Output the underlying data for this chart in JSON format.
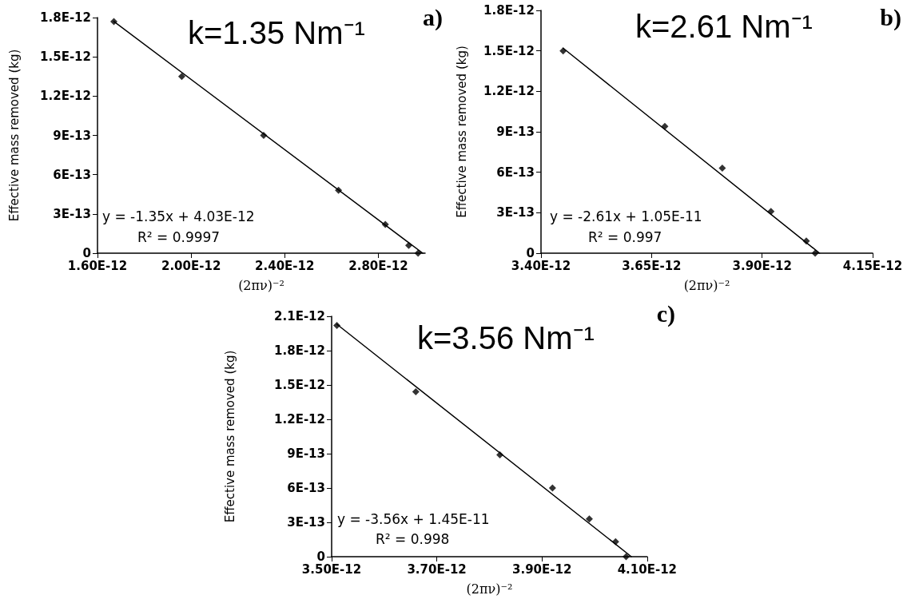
{
  "chart_data": [
    {
      "type": "scatter",
      "title": "k=1.35 Nm⁻¹",
      "xlabel": "(2πν)⁻²",
      "ylabel": "Effective mass removed (kg)",
      "marker": "diamond",
      "grid": false,
      "xlim": [
        1.6e-12,
        3e-12
      ],
      "xticks": [
        {
          "value": 1.6e-12,
          "label": "1.60E-12"
        },
        {
          "value": 2e-12,
          "label": "2.00E-12"
        },
        {
          "value": 2.4e-12,
          "label": "2.40E-12"
        },
        {
          "value": 2.8e-12,
          "label": "2.80E-12"
        }
      ],
      "ylim": [
        0,
        1.8e-12
      ],
      "yticks": [
        {
          "value": 0,
          "label": "0"
        },
        {
          "value": 3e-13,
          "label": "3E-13"
        },
        {
          "value": 6e-13,
          "label": "6E-13"
        },
        {
          "value": 9e-13,
          "label": "9E-13"
        },
        {
          "value": 1.2e-12,
          "label": "1.2E-12"
        },
        {
          "value": 1.5e-12,
          "label": "1.5E-12"
        },
        {
          "value": 1.8e-12,
          "label": "1.8E-12"
        }
      ],
      "series": [
        {
          "color": "#000000",
          "x": [
            1.67e-12,
            1.96e-12,
            2.31e-12,
            2.63e-12,
            2.83e-12,
            2.93e-12,
            2.97e-12
          ],
          "values": [
            1.77e-12,
            1.35e-12,
            9e-13,
            4.8e-13,
            2.2e-13,
            6e-14,
            0
          ]
        },
        {
          "type": "line",
          "marker": "none",
          "color": "#000000",
          "x": [
            1.67e-12,
            2.99e-12
          ],
          "values": [
            1.77e-12,
            0
          ]
        }
      ],
      "annotations": [
        "y = -1.35x + 4.03E-12",
        "R² = 0.9997",
        "a)"
      ]
    },
    {
      "type": "scatter",
      "title": "k=2.61 Nm⁻¹",
      "xlabel": "(2πν)⁻²",
      "ylabel": "Effective mass removed (kg)",
      "marker": "diamond",
      "grid": false,
      "xlim": [
        3.4e-12,
        4.15e-12
      ],
      "xticks": [
        {
          "value": 3.4e-12,
          "label": "3.40E-12"
        },
        {
          "value": 3.65e-12,
          "label": "3.65E-12"
        },
        {
          "value": 3.9e-12,
          "label": "3.90E-12"
        },
        {
          "value": 4.15e-12,
          "label": "4.15E-12"
        }
      ],
      "ylim": [
        0,
        1.8e-12
      ],
      "yticks": [
        {
          "value": 0,
          "label": "0"
        },
        {
          "value": 3e-13,
          "label": "3E-13"
        },
        {
          "value": 6e-13,
          "label": "6E-13"
        },
        {
          "value": 9e-13,
          "label": "9E-13"
        },
        {
          "value": 1.2e-12,
          "label": "1.2E-12"
        },
        {
          "value": 1.5e-12,
          "label": "1.5E-12"
        },
        {
          "value": 1.8e-12,
          "label": "1.8E-12"
        }
      ],
      "series": [
        {
          "color": "#000000",
          "x": [
            3.45e-12,
            3.68e-12,
            3.81e-12,
            3.92e-12,
            4e-12,
            4.02e-12
          ],
          "values": [
            1.5e-12,
            9.4e-13,
            6.3e-13,
            3.1e-13,
            9e-14,
            0
          ]
        },
        {
          "type": "line",
          "marker": "none",
          "color": "#000000",
          "x": [
            3.45e-12,
            4.03e-12
          ],
          "values": [
            1.52e-12,
            0
          ]
        }
      ],
      "annotations": [
        "y = -2.61x + 1.05E-11",
        "R² = 0.997",
        "b)"
      ]
    },
    {
      "type": "scatter",
      "title": "k=3.56 Nm⁻¹",
      "xlabel": "(2πν)⁻²",
      "ylabel": "Effective mass removed (kg)",
      "marker": "diamond",
      "grid": false,
      "xlim": [
        3.5e-12,
        4.1e-12
      ],
      "xticks": [
        {
          "value": 3.5e-12,
          "label": "3.50E-12"
        },
        {
          "value": 3.7e-12,
          "label": "3.70E-12"
        },
        {
          "value": 3.9e-12,
          "label": "3.90E-12"
        },
        {
          "value": 4.1e-12,
          "label": "4.10E-12"
        }
      ],
      "ylim": [
        0,
        2.1e-12
      ],
      "yticks": [
        {
          "value": 0,
          "label": "0"
        },
        {
          "value": 3e-13,
          "label": "3E-13"
        },
        {
          "value": 6e-13,
          "label": "6E-13"
        },
        {
          "value": 9e-13,
          "label": "9E-13"
        },
        {
          "value": 1.2e-12,
          "label": "1.2E-12"
        },
        {
          "value": 1.5e-12,
          "label": "1.5E-12"
        },
        {
          "value": 1.8e-12,
          "label": "1.8E-12"
        },
        {
          "value": 2.1e-12,
          "label": "2.1E-12"
        }
      ],
      "series": [
        {
          "color": "#000000",
          "x": [
            3.51e-12,
            3.66e-12,
            3.82e-12,
            3.92e-12,
            3.99e-12,
            4.04e-12,
            4.06e-12
          ],
          "values": [
            2.02e-12,
            1.44e-12,
            8.9e-13,
            6e-13,
            3.3e-13,
            1.3e-13,
            0
          ]
        },
        {
          "type": "line",
          "marker": "none",
          "color": "#000000",
          "x": [
            3.51e-12,
            4.07e-12
          ],
          "values": [
            2.03e-12,
            0
          ]
        }
      ],
      "annotations": [
        "y = -3.56x + 1.45E-11",
        "R² = 0.998",
        "c)"
      ]
    }
  ]
}
